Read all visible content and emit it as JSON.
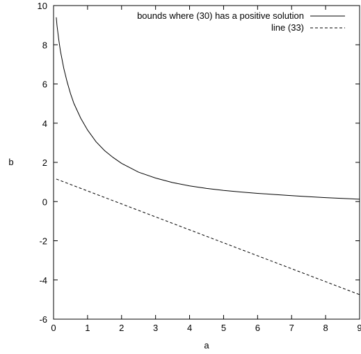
{
  "chart_data": {
    "type": "line",
    "xlabel": "a",
    "ylabel": "b",
    "xlim": [
      0,
      9
    ],
    "ylim": [
      -6,
      10
    ],
    "xticks": [
      0,
      1,
      2,
      3,
      4,
      5,
      6,
      7,
      8,
      9
    ],
    "yticks": [
      -6,
      -4,
      -2,
      0,
      2,
      4,
      6,
      8,
      10
    ],
    "grid": false,
    "legend_position": "top-right",
    "series": [
      {
        "name": "bounds where (30) has a positive solution",
        "style": "solid",
        "color": "#000000",
        "x": [
          0.08,
          0.1,
          0.15,
          0.2,
          0.3,
          0.4,
          0.5,
          0.6,
          0.8,
          1.0,
          1.25,
          1.5,
          1.75,
          2.0,
          2.5,
          3.0,
          3.5,
          4.0,
          4.5,
          5.0,
          5.5,
          6.0,
          6.5,
          7.0,
          7.5,
          8.0,
          8.5,
          9.0
        ],
        "y": [
          9.4,
          9.0,
          8.3,
          7.7,
          6.8,
          6.1,
          5.5,
          5.0,
          4.25,
          3.65,
          3.05,
          2.6,
          2.25,
          1.95,
          1.5,
          1.2,
          0.97,
          0.8,
          0.67,
          0.57,
          0.49,
          0.42,
          0.36,
          0.3,
          0.25,
          0.2,
          0.16,
          0.12
        ]
      },
      {
        "name": "line (33)",
        "style": "dashed",
        "color": "#000000",
        "x": [
          0.08,
          9.0
        ],
        "y": [
          1.15,
          -4.75
        ]
      }
    ]
  }
}
